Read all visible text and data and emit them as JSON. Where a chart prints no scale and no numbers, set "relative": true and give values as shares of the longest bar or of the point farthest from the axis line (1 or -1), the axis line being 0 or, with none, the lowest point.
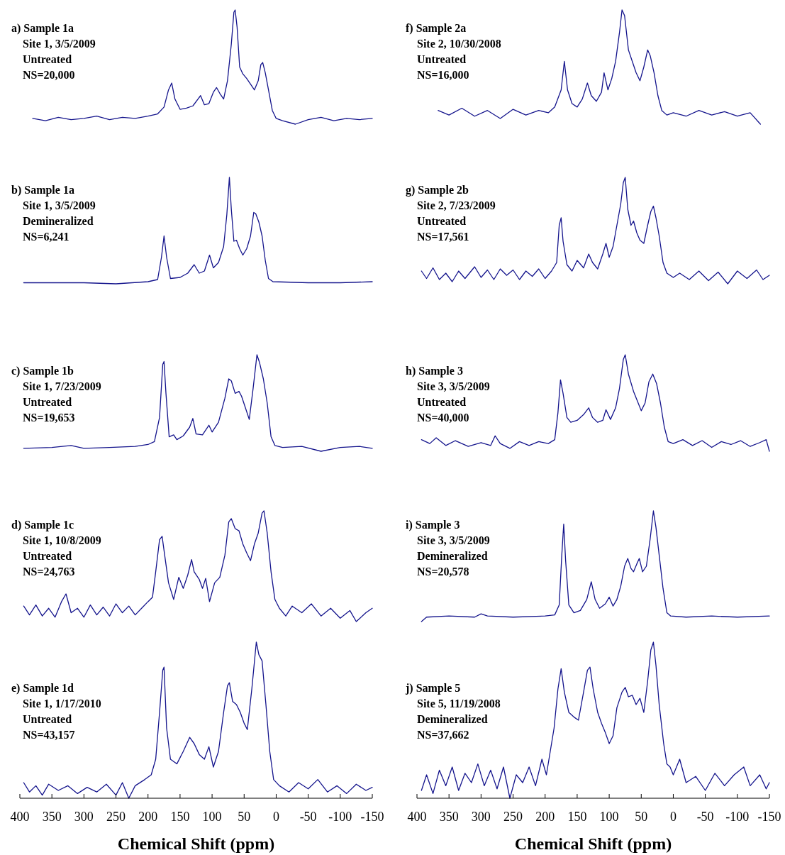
{
  "chart_data": [
    {
      "type": "line",
      "title": "a) Sample 1a",
      "annotations": [
        "Site 1, 3/5/2009",
        "Untreated",
        "NS=20,000"
      ],
      "relative": true,
      "color": "#14148c",
      "xlim": [
        400,
        -150
      ],
      "tick_labels": false,
      "x": [
        380,
        360,
        340,
        320,
        300,
        280,
        260,
        240,
        220,
        200,
        185,
        175,
        168,
        163,
        158,
        150,
        140,
        130,
        122,
        118,
        112,
        105,
        98,
        93,
        88,
        82,
        76,
        70,
        66,
        64,
        61,
        57,
        52,
        46,
        40,
        34,
        28,
        24,
        21,
        17,
        12,
        6,
        0,
        -10,
        -30,
        -50,
        -70,
        -90,
        -110,
        -130,
        -150
      ],
      "values": [
        0.05,
        0.03,
        0.06,
        0.04,
        0.05,
        0.07,
        0.04,
        0.06,
        0.05,
        0.07,
        0.09,
        0.15,
        0.3,
        0.36,
        0.22,
        0.13,
        0.14,
        0.16,
        0.22,
        0.25,
        0.17,
        0.18,
        0.28,
        0.32,
        0.27,
        0.22,
        0.38,
        0.7,
        0.98,
        1.0,
        0.85,
        0.5,
        0.44,
        0.4,
        0.35,
        0.3,
        0.38,
        0.52,
        0.54,
        0.45,
        0.3,
        0.12,
        0.05,
        0.03,
        0.0,
        0.04,
        0.06,
        0.03,
        0.05,
        0.04,
        0.05
      ]
    },
    {
      "type": "line",
      "title": "b) Sample 1a",
      "annotations": [
        "Site 1, 3/5/2009",
        "Demineralized",
        "NS=6,241"
      ],
      "relative": true,
      "color": "#14148c",
      "xlim": [
        400,
        -150
      ],
      "tick_labels": false,
      "x": [
        394,
        300,
        250,
        200,
        185,
        179,
        175,
        171,
        165,
        150,
        138,
        128,
        120,
        112,
        104,
        98,
        90,
        82,
        77,
        73,
        70,
        66,
        62,
        57,
        52,
        46,
        40,
        35,
        32,
        27,
        22,
        17,
        12,
        5,
        -50,
        -100,
        -150
      ],
      "values": [
        0.01,
        0.01,
        0.0,
        0.02,
        0.04,
        0.25,
        0.45,
        0.25,
        0.05,
        0.06,
        0.1,
        0.18,
        0.1,
        0.12,
        0.27,
        0.15,
        0.2,
        0.35,
        0.65,
        1.0,
        0.7,
        0.4,
        0.41,
        0.33,
        0.27,
        0.33,
        0.45,
        0.67,
        0.66,
        0.58,
        0.45,
        0.22,
        0.05,
        0.02,
        0.01,
        0.01,
        0.02
      ]
    },
    {
      "type": "line",
      "title": "c) Sample 1b",
      "annotations": [
        "Site 1, 7/23/2009",
        "Untreated",
        "NS=19,653"
      ],
      "relative": true,
      "color": "#14148c",
      "xlim": [
        400,
        -150
      ],
      "tick_labels": false,
      "x": [
        394,
        350,
        320,
        300,
        260,
        220,
        200,
        190,
        182,
        177,
        175,
        172,
        167,
        160,
        155,
        145,
        135,
        130,
        125,
        115,
        105,
        100,
        90,
        80,
        74,
        70,
        64,
        58,
        54,
        48,
        42,
        36,
        30,
        26,
        20,
        14,
        8,
        2,
        -10,
        -40,
        -70,
        -100,
        -130,
        -150
      ],
      "values": [
        0.03,
        0.04,
        0.06,
        0.03,
        0.04,
        0.05,
        0.07,
        0.1,
        0.35,
        0.9,
        0.93,
        0.6,
        0.15,
        0.17,
        0.12,
        0.16,
        0.25,
        0.34,
        0.18,
        0.17,
        0.27,
        0.2,
        0.3,
        0.55,
        0.75,
        0.73,
        0.6,
        0.62,
        0.57,
        0.45,
        0.33,
        0.65,
        1.0,
        0.92,
        0.75,
        0.5,
        0.15,
        0.06,
        0.04,
        0.05,
        0.0,
        0.04,
        0.05,
        0.03
      ]
    },
    {
      "type": "line",
      "title": "d) Sample 1c",
      "annotations": [
        "Site 1, 10/8/2009",
        "Untreated",
        "NS=24,763"
      ],
      "relative": true,
      "color": "#14148c",
      "xlim": [
        400,
        -150
      ],
      "tick_labels": false,
      "x": [
        394,
        385,
        375,
        365,
        355,
        345,
        335,
        328,
        320,
        310,
        300,
        290,
        280,
        270,
        260,
        250,
        240,
        230,
        220,
        210,
        200,
        193,
        188,
        182,
        178,
        174,
        168,
        160,
        152,
        145,
        138,
        132,
        128,
        120,
        115,
        110,
        104,
        96,
        88,
        80,
        74,
        70,
        64,
        58,
        52,
        46,
        40,
        34,
        28,
        22,
        19,
        14,
        8,
        2,
        -5,
        -15,
        -25,
        -40,
        -55,
        -70,
        -85,
        -100,
        -115,
        -125,
        -140,
        -150
      ],
      "values": [
        0.14,
        0.06,
        0.15,
        0.05,
        0.12,
        0.04,
        0.18,
        0.25,
        0.08,
        0.12,
        0.04,
        0.15,
        0.06,
        0.13,
        0.05,
        0.16,
        0.08,
        0.14,
        0.06,
        0.12,
        0.18,
        0.22,
        0.45,
        0.74,
        0.77,
        0.6,
        0.35,
        0.2,
        0.4,
        0.3,
        0.42,
        0.56,
        0.45,
        0.38,
        0.3,
        0.39,
        0.18,
        0.35,
        0.4,
        0.6,
        0.9,
        0.93,
        0.84,
        0.82,
        0.7,
        0.62,
        0.55,
        0.7,
        0.8,
        0.98,
        1.0,
        0.8,
        0.45,
        0.2,
        0.12,
        0.05,
        0.14,
        0.08,
        0.16,
        0.05,
        0.12,
        0.03,
        0.1,
        0.0,
        0.08,
        0.12
      ]
    },
    {
      "type": "line",
      "title": "e) Sample 1d",
      "annotations": [
        "Site 1, 1/17/2010",
        "Untreated",
        "NS=43,157"
      ],
      "relative": true,
      "color": "#14148c",
      "xlim": [
        400,
        -150
      ],
      "xticks": [
        400,
        350,
        300,
        250,
        200,
        150,
        100,
        50,
        0,
        -50,
        -100,
        -150
      ],
      "xlabel": "Chemical Shift (ppm)",
      "x": [
        394,
        385,
        375,
        365,
        355,
        340,
        325,
        310,
        295,
        280,
        265,
        250,
        240,
        230,
        220,
        205,
        195,
        188,
        182,
        177,
        175,
        171,
        165,
        155,
        145,
        135,
        128,
        120,
        112,
        105,
        98,
        90,
        82,
        76,
        73,
        68,
        62,
        56,
        50,
        45,
        38,
        31,
        27,
        22,
        16,
        10,
        4,
        -5,
        -20,
        -35,
        -50,
        -65,
        -80,
        -95,
        -110,
        -125,
        -140,
        -150
      ],
      "values": [
        0.1,
        0.04,
        0.08,
        0.02,
        0.09,
        0.05,
        0.08,
        0.03,
        0.07,
        0.04,
        0.09,
        0.02,
        0.1,
        0.0,
        0.08,
        0.12,
        0.15,
        0.25,
        0.55,
        0.82,
        0.84,
        0.45,
        0.25,
        0.22,
        0.3,
        0.39,
        0.35,
        0.28,
        0.25,
        0.33,
        0.2,
        0.3,
        0.55,
        0.72,
        0.74,
        0.62,
        0.6,
        0.55,
        0.48,
        0.44,
        0.7,
        1.0,
        0.92,
        0.88,
        0.6,
        0.3,
        0.12,
        0.08,
        0.04,
        0.1,
        0.06,
        0.12,
        0.04,
        0.08,
        0.03,
        0.09,
        0.05,
        0.07
      ]
    },
    {
      "type": "line",
      "title": "f) Sample 2a",
      "annotations": [
        "Site 2, 10/30/2008",
        "Untreated",
        "NS=16,000"
      ],
      "relative": true,
      "color": "#14148c",
      "xlim": [
        400,
        -150
      ],
      "tick_labels": false,
      "x": [
        367,
        350,
        330,
        310,
        290,
        270,
        250,
        230,
        210,
        195,
        185,
        175,
        170,
        165,
        158,
        150,
        142,
        134,
        128,
        120,
        112,
        108,
        102,
        96,
        90,
        84,
        80,
        76,
        70,
        64,
        58,
        52,
        46,
        40,
        36,
        30,
        24,
        18,
        10,
        0,
        -20,
        -40,
        -60,
        -80,
        -100,
        -120,
        -136
      ],
      "values": [
        0.12,
        0.08,
        0.14,
        0.07,
        0.12,
        0.05,
        0.13,
        0.08,
        0.12,
        0.1,
        0.15,
        0.3,
        0.55,
        0.3,
        0.18,
        0.15,
        0.22,
        0.36,
        0.25,
        0.2,
        0.28,
        0.45,
        0.3,
        0.4,
        0.55,
        0.8,
        1.0,
        0.95,
        0.65,
        0.55,
        0.45,
        0.38,
        0.5,
        0.65,
        0.6,
        0.45,
        0.25,
        0.12,
        0.08,
        0.1,
        0.07,
        0.12,
        0.08,
        0.11,
        0.07,
        0.1,
        0.0
      ]
    },
    {
      "type": "line",
      "title": "g) Sample 2b",
      "annotations": [
        "Site 2, 7/23/2009",
        "Untreated",
        "NS=17,561"
      ],
      "relative": true,
      "color": "#14148c",
      "xlim": [
        400,
        -150
      ],
      "tick_labels": false,
      "x": [
        393,
        385,
        375,
        365,
        355,
        345,
        335,
        325,
        310,
        300,
        290,
        280,
        270,
        260,
        250,
        240,
        230,
        220,
        210,
        200,
        190,
        182,
        178,
        175,
        172,
        166,
        158,
        150,
        140,
        132,
        126,
        118,
        110,
        105,
        100,
        94,
        88,
        82,
        78,
        75,
        71,
        66,
        62,
        57,
        52,
        46,
        40,
        35,
        31,
        27,
        22,
        16,
        10,
        0,
        -10,
        -25,
        -40,
        -55,
        -70,
        -85,
        -100,
        -115,
        -130,
        -140,
        -150
      ],
      "values": [
        0.12,
        0.05,
        0.15,
        0.04,
        0.1,
        0.02,
        0.12,
        0.05,
        0.16,
        0.06,
        0.13,
        0.04,
        0.14,
        0.08,
        0.13,
        0.04,
        0.12,
        0.07,
        0.14,
        0.05,
        0.12,
        0.2,
        0.55,
        0.62,
        0.4,
        0.18,
        0.12,
        0.22,
        0.15,
        0.28,
        0.2,
        0.14,
        0.28,
        0.38,
        0.25,
        0.35,
        0.55,
        0.75,
        0.95,
        1.0,
        0.7,
        0.55,
        0.59,
        0.48,
        0.41,
        0.38,
        0.55,
        0.68,
        0.73,
        0.62,
        0.45,
        0.2,
        0.1,
        0.06,
        0.1,
        0.04,
        0.12,
        0.03,
        0.11,
        0.0,
        0.12,
        0.05,
        0.13,
        0.04,
        0.08
      ]
    },
    {
      "type": "line",
      "title": "h) Sample 3",
      "annotations": [
        "Site 3, 3/5/2009",
        "Untreated",
        "NS=40,000"
      ],
      "relative": true,
      "color": "#14148c",
      "xlim": [
        400,
        -150
      ],
      "tick_labels": false,
      "x": [
        393,
        380,
        370,
        355,
        340,
        320,
        300,
        285,
        278,
        270,
        255,
        240,
        225,
        210,
        195,
        185,
        180,
        176,
        172,
        166,
        160,
        150,
        140,
        132,
        126,
        118,
        110,
        105,
        98,
        90,
        84,
        78,
        75,
        70,
        62,
        56,
        50,
        44,
        38,
        32,
        26,
        20,
        14,
        8,
        0,
        -15,
        -30,
        -45,
        -60,
        -75,
        -90,
        -105,
        -120,
        -135,
        -145,
        -150
      ],
      "values": [
        0.12,
        0.08,
        0.14,
        0.06,
        0.11,
        0.05,
        0.09,
        0.06,
        0.16,
        0.08,
        0.03,
        0.1,
        0.06,
        0.1,
        0.08,
        0.12,
        0.4,
        0.74,
        0.6,
        0.35,
        0.3,
        0.32,
        0.38,
        0.45,
        0.35,
        0.3,
        0.32,
        0.43,
        0.33,
        0.45,
        0.65,
        0.95,
        1.0,
        0.8,
        0.62,
        0.52,
        0.42,
        0.5,
        0.72,
        0.8,
        0.7,
        0.5,
        0.25,
        0.1,
        0.08,
        0.12,
        0.06,
        0.11,
        0.04,
        0.1,
        0.07,
        0.11,
        0.05,
        0.09,
        0.12,
        0.0
      ]
    },
    {
      "type": "line",
      "title": "i) Sample 3",
      "annotations": [
        "Site 3, 3/5/2009",
        "Demineralized",
        "NS=20,578"
      ],
      "relative": true,
      "color": "#14148c",
      "xlim": [
        400,
        -150
      ],
      "tick_labels": false,
      "x": [
        393,
        385,
        350,
        310,
        300,
        290,
        250,
        200,
        185,
        178,
        174,
        171,
        168,
        163,
        155,
        145,
        135,
        128,
        122,
        115,
        106,
        100,
        94,
        88,
        82,
        76,
        71,
        66,
        62,
        57,
        53,
        48,
        42,
        36,
        31,
        27,
        22,
        16,
        10,
        4,
        -20,
        -60,
        -100,
        -150
      ],
      "values": [
        0.0,
        0.04,
        0.05,
        0.04,
        0.07,
        0.05,
        0.04,
        0.05,
        0.06,
        0.15,
        0.6,
        0.88,
        0.55,
        0.15,
        0.08,
        0.1,
        0.2,
        0.36,
        0.2,
        0.12,
        0.16,
        0.22,
        0.14,
        0.2,
        0.32,
        0.5,
        0.57,
        0.48,
        0.45,
        0.52,
        0.57,
        0.45,
        0.5,
        0.75,
        1.0,
        0.85,
        0.6,
        0.3,
        0.08,
        0.05,
        0.04,
        0.05,
        0.04,
        0.05
      ]
    },
    {
      "type": "line",
      "title": "j) Sample 5",
      "annotations": [
        "Site 5, 11/19/2008",
        "Demineralized",
        "NS=37,662"
      ],
      "relative": true,
      "color": "#14148c",
      "xlim": [
        400,
        -150
      ],
      "xticks": [
        400,
        350,
        300,
        250,
        200,
        150,
        100,
        50,
        0,
        -50,
        -100,
        -150
      ],
      "xlabel": "Chemical Shift (ppm)",
      "x": [
        393,
        385,
        375,
        365,
        355,
        345,
        335,
        325,
        315,
        305,
        295,
        285,
        275,
        265,
        255,
        245,
        235,
        225,
        215,
        205,
        198,
        192,
        186,
        180,
        175,
        170,
        163,
        155,
        148,
        140,
        134,
        130,
        125,
        118,
        112,
        106,
        100,
        94,
        88,
        80,
        75,
        70,
        64,
        58,
        52,
        46,
        40,
        35,
        31,
        27,
        22,
        15,
        10,
        5,
        0,
        -10,
        -20,
        -35,
        -50,
        -65,
        -80,
        -95,
        -110,
        -120,
        -135,
        -145,
        -150
      ],
      "values": [
        0.05,
        0.15,
        0.03,
        0.18,
        0.08,
        0.2,
        0.05,
        0.16,
        0.1,
        0.22,
        0.08,
        0.18,
        0.06,
        0.2,
        0.0,
        0.15,
        0.1,
        0.2,
        0.08,
        0.25,
        0.15,
        0.3,
        0.45,
        0.7,
        0.83,
        0.68,
        0.55,
        0.52,
        0.5,
        0.68,
        0.82,
        0.84,
        0.7,
        0.55,
        0.48,
        0.42,
        0.35,
        0.4,
        0.58,
        0.68,
        0.71,
        0.65,
        0.66,
        0.6,
        0.64,
        0.55,
        0.75,
        0.95,
        1.0,
        0.85,
        0.6,
        0.35,
        0.22,
        0.2,
        0.15,
        0.25,
        0.1,
        0.14,
        0.05,
        0.16,
        0.08,
        0.15,
        0.2,
        0.08,
        0.15,
        0.06,
        0.1
      ]
    }
  ]
}
